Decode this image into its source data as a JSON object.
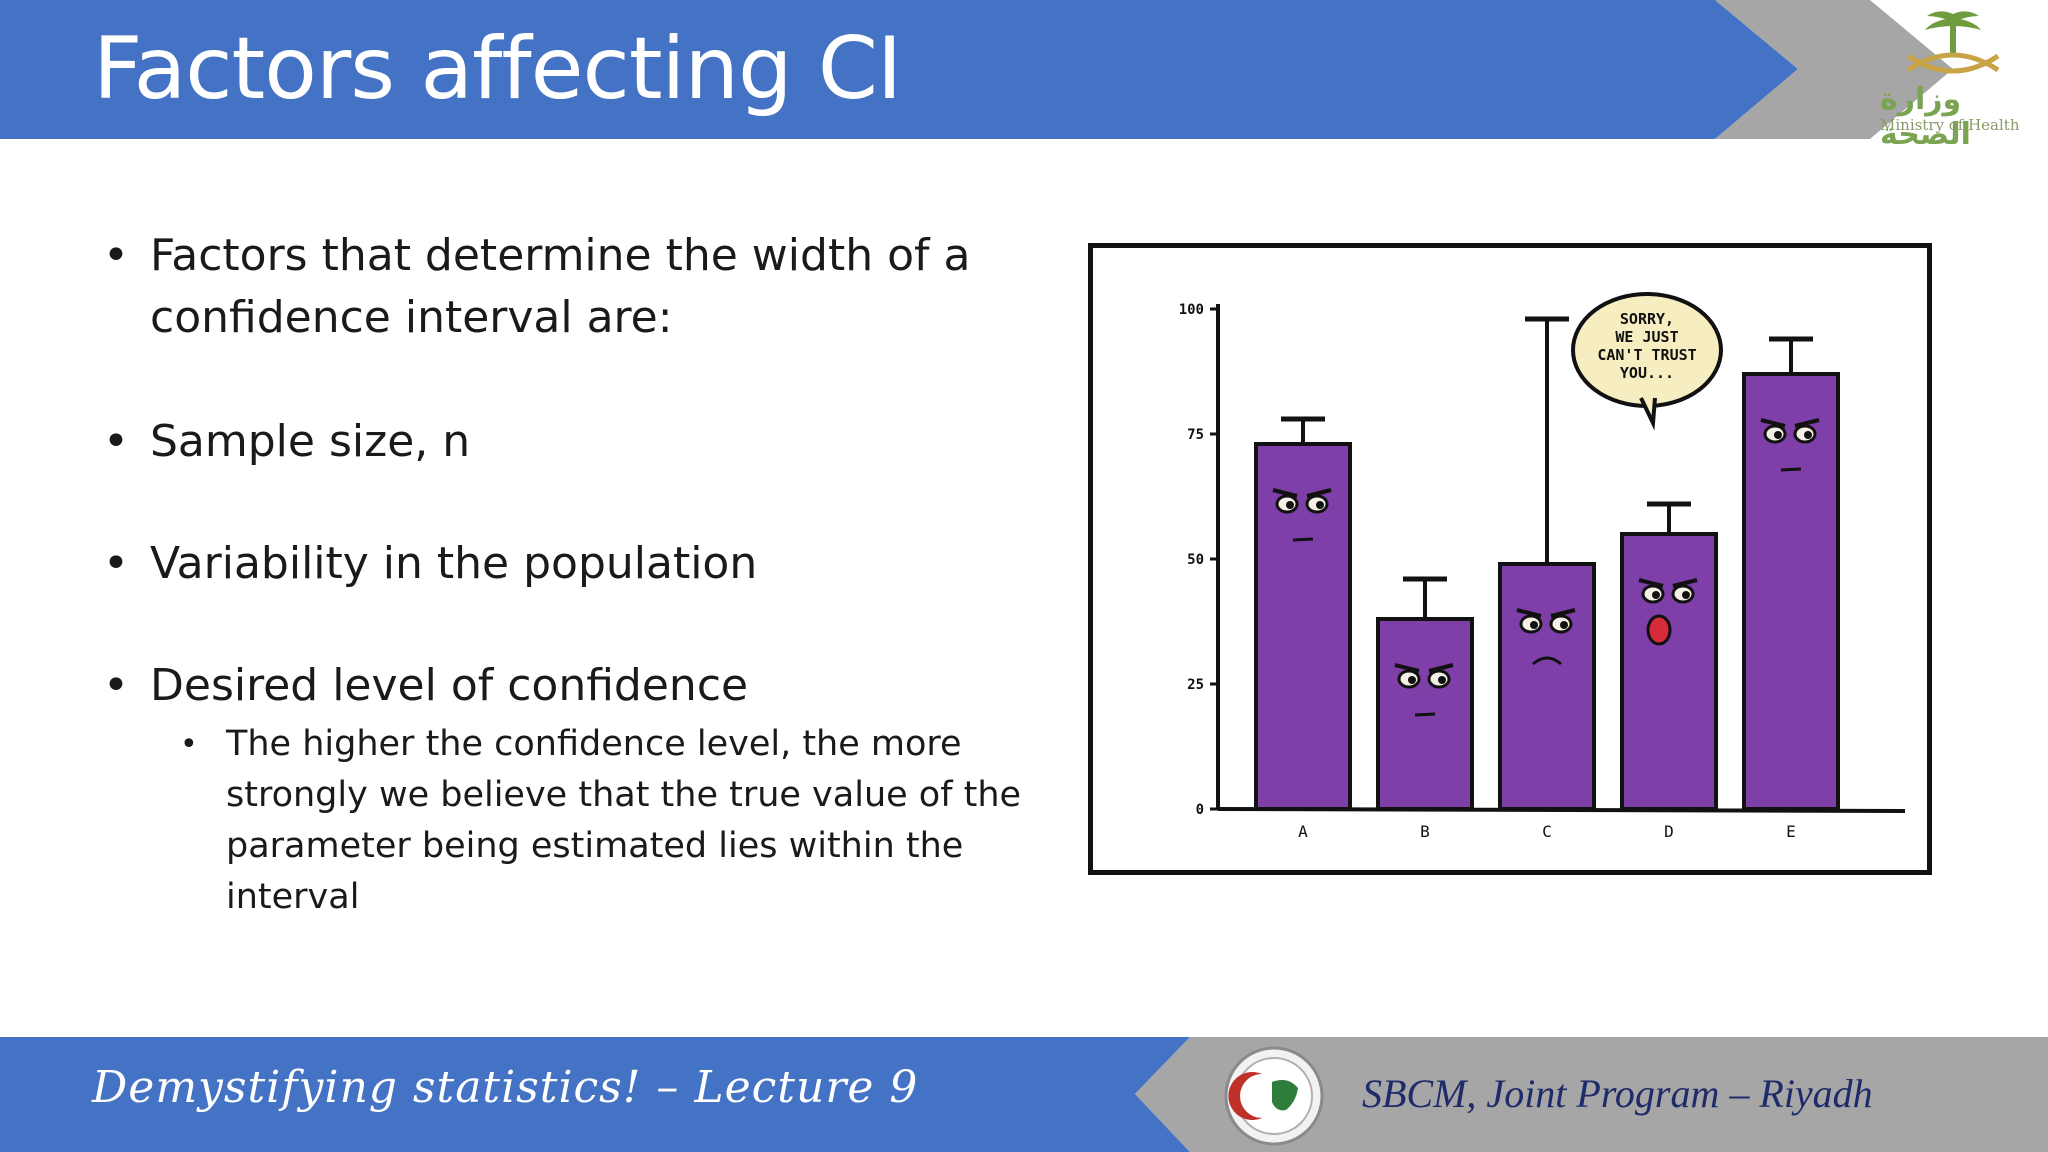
{
  "slide": {
    "title": "Factors affecting CI"
  },
  "logo": {
    "text_ar": "وزارة الصحة",
    "text_en": "Ministry of Health"
  },
  "bullets": [
    {
      "text": "Factors that determine the width of a confidence interval are:"
    },
    {
      "text": "Sample size, n"
    },
    {
      "text": "Variability in the population"
    },
    {
      "text": "Desired level of confidence"
    }
  ],
  "sub_bullets": [
    {
      "text": "The higher the confidence level, the more strongly we believe that the true value of the parameter being estimated lies within the interval"
    }
  ],
  "bullet_glyph": "•",
  "chart_data": {
    "type": "bar",
    "categories": [
      "A",
      "B",
      "C",
      "D",
      "E"
    ],
    "values": [
      73,
      38,
      49,
      55,
      87
    ],
    "error_upper": [
      78,
      46,
      98,
      61,
      94
    ],
    "ylim": [
      0,
      100
    ],
    "yticks": [
      "0",
      "25",
      "50",
      "75",
      "100"
    ],
    "bar_color": "#7e3fa8",
    "speech_bubble": [
      "SORRY,",
      "WE JUST",
      "CAN'T TRUST",
      "YOU..."
    ]
  },
  "footer": {
    "left": "Demystifying statistics! – Lecture 9",
    "right": "SBCM, Joint Program – Riyadh"
  },
  "colors": {
    "primary_blue": "#4472c4",
    "arrow_gray": "#a6a6a6",
    "footer_text_right": "#1f2a6a"
  }
}
